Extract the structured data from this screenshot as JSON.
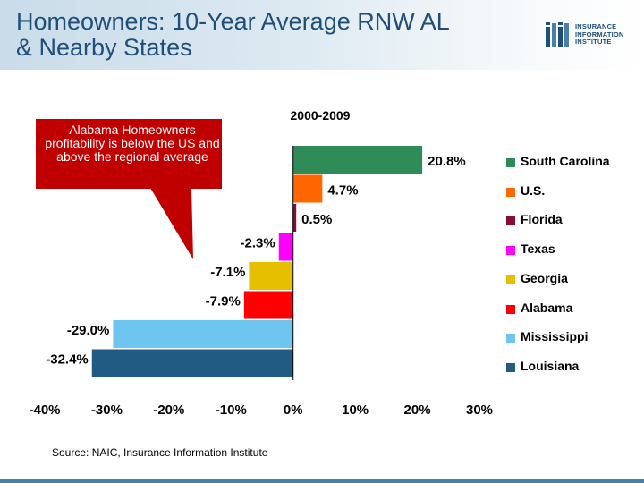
{
  "slide": {
    "title_line1": "Homeowners: 10-Year Average RNW AL",
    "title_line2": "& Nearby States",
    "logo_lines": [
      "INSURANCE",
      "INFORMATION",
      "INSTITUTE"
    ],
    "callout": "Alabama Homeowners profitability is below the US and above the regional average",
    "source": "Source: NAIC, Insurance Information Institute",
    "callout_color": "#c00000"
  },
  "chart_data": {
    "type": "bar",
    "orientation": "horizontal",
    "subtitle": "2000-2009",
    "categories": [
      "South Carolina",
      "U.S.",
      "Florida",
      "Texas",
      "Georgia",
      "Alabama",
      "Mississippi",
      "Louisiana"
    ],
    "values": [
      20.8,
      4.7,
      0.5,
      -2.3,
      -7.1,
      -7.9,
      -29.0,
      -32.4
    ],
    "value_labels": [
      "20.8%",
      "4.7%",
      "0.5%",
      "-2.3%",
      "-7.1%",
      "-7.9%",
      "-29.0%",
      "-32.4%"
    ],
    "colors": [
      "#2e8b57",
      "#ff6600",
      "#8b0a33",
      "#ff00ff",
      "#e6c000",
      "#ff0000",
      "#6ec6f0",
      "#1f5b82"
    ],
    "xlim": [
      -40,
      30
    ],
    "xticks": [
      -40,
      -30,
      -20,
      -10,
      0,
      10,
      20,
      30
    ],
    "xtick_labels": [
      "-40%",
      "-30%",
      "-20%",
      "-10%",
      "0%",
      "10%",
      "20%",
      "30%"
    ],
    "legend_position": "right",
    "grid": false
  }
}
